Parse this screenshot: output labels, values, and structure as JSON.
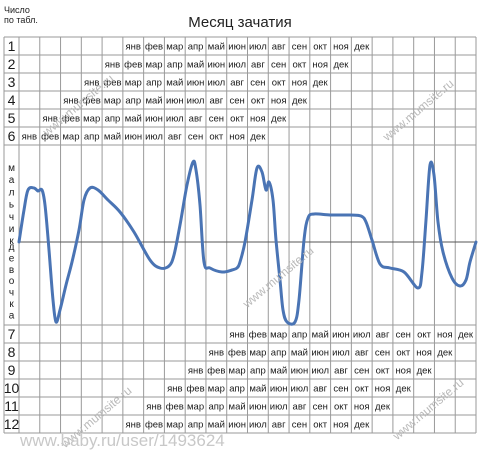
{
  "header": {
    "corner_label_line1": "Число",
    "corner_label_line2": "по табл.",
    "title": "Месяц зачатия"
  },
  "axis_labels": {
    "boy": "мальчик",
    "girl": "девочка"
  },
  "watermarks": {
    "site": "www.mumsite.ru",
    "footer": "www.baby.ru/user/1493624"
  },
  "colors": {
    "grid": "#9a9a9a",
    "curve": "#4a74b4",
    "text": "#1a1a1a"
  },
  "chart_data": {
    "type": "table",
    "columns": 22,
    "row_numbers": [
      "1",
      "2",
      "3",
      "4",
      "5",
      "6",
      "7",
      "8",
      "9",
      "10",
      "11",
      "12"
    ],
    "rows": [
      {
        "number": "1",
        "start_col": 5,
        "months": [
          "янв",
          "фев",
          "мар",
          "апр",
          "май",
          "июн",
          "июл",
          "авг",
          "сен",
          "окт",
          "ноя",
          "дек"
        ]
      },
      {
        "number": "2",
        "start_col": 4,
        "months": [
          "янв",
          "фев",
          "мар",
          "апр",
          "май",
          "июн",
          "июл",
          "авг",
          "сен",
          "окт",
          "ноя",
          "дек"
        ]
      },
      {
        "number": "3",
        "start_col": 3,
        "months": [
          "янв",
          "фев",
          "мар",
          "апр",
          "май",
          "июн",
          "июл",
          "авг",
          "сен",
          "окт",
          "ноя",
          "дек"
        ]
      },
      {
        "number": "4",
        "start_col": 2,
        "months": [
          "янв",
          "фев",
          "мар",
          "апр",
          "май",
          "июн",
          "июл",
          "авг",
          "сен",
          "окт",
          "ноя",
          "дек"
        ]
      },
      {
        "number": "5",
        "start_col": 1,
        "months": [
          "янв",
          "фев",
          "мар",
          "апр",
          "май",
          "июн",
          "июл",
          "авг",
          "сен",
          "окт",
          "ноя",
          "дек"
        ]
      },
      {
        "number": "6",
        "start_col": 0,
        "months": [
          "янв",
          "фев",
          "мар",
          "апр",
          "май",
          "июн",
          "июл",
          "авг",
          "сен",
          "окт",
          "ноя",
          "дек"
        ]
      },
      {
        "number": "7",
        "start_col": 10,
        "months": [
          "янв",
          "фев",
          "мар",
          "апр",
          "май",
          "июн",
          "июл",
          "авг",
          "сен",
          "окт",
          "ноя",
          "дек"
        ]
      },
      {
        "number": "8",
        "start_col": 9,
        "months": [
          "янв",
          "фев",
          "мар",
          "апр",
          "май",
          "июн",
          "июл",
          "авг",
          "сен",
          "окт",
          "ноя",
          "дек"
        ]
      },
      {
        "number": "9",
        "start_col": 8,
        "months": [
          "янв",
          "фев",
          "мар",
          "апр",
          "май",
          "июн",
          "июл",
          "авг",
          "сен",
          "окт",
          "ноя",
          "дек"
        ]
      },
      {
        "number": "10",
        "start_col": 7,
        "months": [
          "янв",
          "фев",
          "мар",
          "апр",
          "май",
          "июн",
          "июл",
          "авг",
          "сен",
          "окт",
          "ноя",
          "дек"
        ]
      },
      {
        "number": "11",
        "start_col": 6,
        "months": [
          "янв",
          "фев",
          "мар",
          "апр",
          "май",
          "июн",
          "июл",
          "авг",
          "сен",
          "окт",
          "ноя",
          "дек"
        ]
      },
      {
        "number": "12",
        "start_col": 5,
        "months": [
          "янв",
          "фев",
          "мар",
          "апр",
          "май",
          "июн",
          "июл",
          "авг",
          "сен",
          "окт",
          "ноя",
          "дек"
        ]
      }
    ]
  }
}
